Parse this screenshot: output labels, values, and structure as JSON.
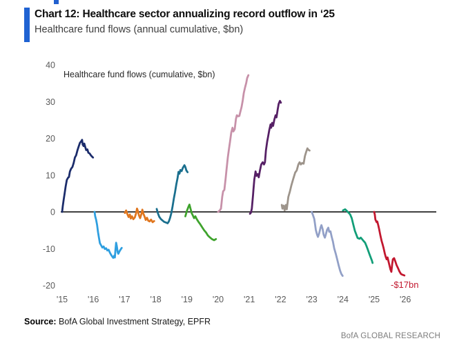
{
  "header": {
    "title": "Chart 12: Healthcare sector annualizing record outflow in ‘25",
    "subtitle": "Healthcare fund flows (annual cumulative, $bn)"
  },
  "footer": {
    "source_label": "Source:",
    "source_text": " BofA Global Investment Strategy, EPFR",
    "brand": "BofA GLOBAL RESEARCH"
  },
  "accent_color": "#1f62d2",
  "chart_data": {
    "type": "line",
    "title": "Healthcare fund flows (cumulative, $bn)",
    "xlabel": "",
    "ylabel": "$bn",
    "ylim": [
      -20,
      40
    ],
    "grid": false,
    "legend": "none",
    "x_ticks": [
      "'15",
      "'16",
      "'17",
      "'18",
      "'19",
      "'20",
      "'21",
      "'22",
      "'23",
      "'24",
      "'25",
      "'26"
    ],
    "y_ticks": [
      40,
      30,
      20,
      10,
      0,
      -10,
      -20
    ],
    "annotation": {
      "text": "-$17bn"
    },
    "series": [
      {
        "year": "'15",
        "color": "#1b2c6b",
        "points": [
          [
            0,
            0
          ],
          [
            0.02,
            1.5
          ],
          [
            0.05,
            3.4
          ],
          [
            0.08,
            5
          ],
          [
            0.11,
            6.8
          ],
          [
            0.15,
            8.7
          ],
          [
            0.19,
            9.3
          ],
          [
            0.22,
            9.5
          ],
          [
            0.25,
            11
          ],
          [
            0.29,
            11.8
          ],
          [
            0.33,
            12.2
          ],
          [
            0.37,
            13.3
          ],
          [
            0.41,
            14.8
          ],
          [
            0.45,
            15.4
          ],
          [
            0.49,
            16.7
          ],
          [
            0.53,
            17.8
          ],
          [
            0.57,
            18.8
          ],
          [
            0.61,
            19.2
          ],
          [
            0.64,
            19.6
          ],
          [
            0.66,
            18.3
          ],
          [
            0.69,
            17.9
          ],
          [
            0.71,
            18.6
          ],
          [
            0.74,
            17.7
          ],
          [
            0.77,
            16.8
          ],
          [
            0.81,
            17
          ],
          [
            0.84,
            16.1
          ],
          [
            0.88,
            15.9
          ],
          [
            0.93,
            15.3
          ],
          [
            0.99,
            14.8
          ]
        ]
      },
      {
        "year": "'16",
        "color": "#2f9fe0",
        "points": [
          [
            0.04,
            0
          ],
          [
            0.06,
            -1.2
          ],
          [
            0.09,
            -2.2
          ],
          [
            0.12,
            -3.5
          ],
          [
            0.15,
            -5.5
          ],
          [
            0.18,
            -7
          ],
          [
            0.21,
            -8.5
          ],
          [
            0.25,
            -9.1
          ],
          [
            0.29,
            -9.7
          ],
          [
            0.33,
            -9.4
          ],
          [
            0.37,
            -10.1
          ],
          [
            0.41,
            -9.9
          ],
          [
            0.45,
            -10.5
          ],
          [
            0.49,
            -10.3
          ],
          [
            0.53,
            -11.1
          ],
          [
            0.57,
            -11.7
          ],
          [
            0.61,
            -12.2
          ],
          [
            0.64,
            -12.5
          ],
          [
            0.67,
            -11.9
          ],
          [
            0.69,
            -12.4
          ],
          [
            0.71,
            -10.2
          ],
          [
            0.73,
            -8.4
          ],
          [
            0.75,
            -9.2
          ],
          [
            0.78,
            -11
          ],
          [
            0.8,
            -11.4
          ],
          [
            0.84,
            -10.7
          ],
          [
            0.87,
            -10.3
          ],
          [
            0.91,
            -9.8
          ]
        ]
      },
      {
        "year": "'17",
        "color": "#e0761e",
        "points": [
          [
            0.01,
            -0.3
          ],
          [
            0.05,
            0.4
          ],
          [
            0.09,
            -0.6
          ],
          [
            0.13,
            -1.4
          ],
          [
            0.17,
            -0.7
          ],
          [
            0.2,
            -1.8
          ],
          [
            0.24,
            -1.2
          ],
          [
            0.28,
            -2
          ],
          [
            0.33,
            -1.5
          ],
          [
            0.37,
            -0.4
          ],
          [
            0.4,
            0.9
          ],
          [
            0.43,
            0.2
          ],
          [
            0.46,
            -0.9
          ],
          [
            0.5,
            -1.7
          ],
          [
            0.54,
            -0.6
          ],
          [
            0.57,
            0.6
          ],
          [
            0.6,
            -0.4
          ],
          [
            0.64,
            -1.2
          ],
          [
            0.68,
            -2.2
          ],
          [
            0.72,
            -1.6
          ],
          [
            0.76,
            -2.4
          ],
          [
            0.8,
            -2.6
          ],
          [
            0.85,
            -2.1
          ],
          [
            0.9,
            -2.8
          ],
          [
            0.95,
            -2.5
          ]
        ]
      },
      {
        "year": "'18",
        "color": "#1a6f8e",
        "points": [
          [
            0.03,
            0.8
          ],
          [
            0.07,
            -0.4
          ],
          [
            0.11,
            -1.3
          ],
          [
            0.16,
            -1.9
          ],
          [
            0.21,
            -2.3
          ],
          [
            0.27,
            -2.7
          ],
          [
            0.33,
            -2.9
          ],
          [
            0.38,
            -3.1
          ],
          [
            0.42,
            -2.6
          ],
          [
            0.46,
            -1.6
          ],
          [
            0.5,
            -0.3
          ],
          [
            0.54,
            1.5
          ],
          [
            0.58,
            3.6
          ],
          [
            0.62,
            5.4
          ],
          [
            0.66,
            7.5
          ],
          [
            0.7,
            9.2
          ],
          [
            0.73,
            10.9
          ],
          [
            0.76,
            10.4
          ],
          [
            0.79,
            11.4
          ],
          [
            0.83,
            11.1
          ],
          [
            0.87,
            12
          ],
          [
            0.92,
            12.7
          ],
          [
            0.95,
            12.2
          ],
          [
            0.98,
            11.3
          ],
          [
            1.02,
            10.8
          ]
        ]
      },
      {
        "year": "'19",
        "color": "#3fa32d",
        "points": [
          [
            -0.05,
            -1.2
          ],
          [
            0,
            0.3
          ],
          [
            0.04,
            1.2
          ],
          [
            0.08,
            2
          ],
          [
            0.11,
            1
          ],
          [
            0.15,
            -0.3
          ],
          [
            0.19,
            -1
          ],
          [
            0.23,
            -1.7
          ],
          [
            0.27,
            -1.2
          ],
          [
            0.31,
            -1.9
          ],
          [
            0.37,
            -2.7
          ],
          [
            0.43,
            -3.4
          ],
          [
            0.49,
            -4.2
          ],
          [
            0.55,
            -5
          ],
          [
            0.61,
            -5.6
          ],
          [
            0.67,
            -6.4
          ],
          [
            0.73,
            -6.9
          ],
          [
            0.8,
            -7.4
          ],
          [
            0.87,
            -7.7
          ],
          [
            0.93,
            -7.4
          ]
        ]
      },
      {
        "year": "'20",
        "color": "#c791a9",
        "points": [
          [
            0,
            0
          ],
          [
            0.05,
            0.4
          ],
          [
            0.09,
            0.9
          ],
          [
            0.13,
            4.1
          ],
          [
            0.16,
            5.6
          ],
          [
            0.2,
            6
          ],
          [
            0.24,
            9
          ],
          [
            0.27,
            11.6
          ],
          [
            0.31,
            14.8
          ],
          [
            0.35,
            17.3
          ],
          [
            0.38,
            19.1
          ],
          [
            0.42,
            21.6
          ],
          [
            0.46,
            22.9
          ],
          [
            0.49,
            21.9
          ],
          [
            0.53,
            22.5
          ],
          [
            0.57,
            25.3
          ],
          [
            0.6,
            26.3
          ],
          [
            0.64,
            26
          ],
          [
            0.68,
            26.1
          ],
          [
            0.71,
            27.2
          ],
          [
            0.75,
            28.5
          ],
          [
            0.79,
            30.4
          ],
          [
            0.82,
            32.3
          ],
          [
            0.86,
            33.8
          ],
          [
            0.9,
            35.1
          ],
          [
            0.93,
            36.4
          ],
          [
            0.97,
            37.2
          ]
        ]
      },
      {
        "year": "'21",
        "color": "#562065",
        "points": [
          [
            0.02,
            -0.5
          ],
          [
            0.05,
            -0.2
          ],
          [
            0.08,
            0.9
          ],
          [
            0.12,
            4.7
          ],
          [
            0.13,
            6
          ],
          [
            0.16,
            8.8
          ],
          [
            0.2,
            11
          ],
          [
            0.23,
            9.8
          ],
          [
            0.27,
            10.3
          ],
          [
            0.3,
            9.4
          ],
          [
            0.34,
            11.3
          ],
          [
            0.38,
            12.9
          ],
          [
            0.43,
            13.5
          ],
          [
            0.47,
            12.9
          ],
          [
            0.5,
            13.5
          ],
          [
            0.53,
            16.7
          ],
          [
            0.57,
            19.1
          ],
          [
            0.6,
            20.4
          ],
          [
            0.64,
            22.3
          ],
          [
            0.68,
            23.8
          ],
          [
            0.7,
            22.9
          ],
          [
            0.73,
            24.2
          ],
          [
            0.76,
            23.4
          ],
          [
            0.8,
            25.1
          ],
          [
            0.84,
            26.3
          ],
          [
            0.87,
            25.7
          ],
          [
            0.91,
            27.9
          ],
          [
            0.94,
            29.4
          ],
          [
            0.98,
            30.2
          ],
          [
            1.01,
            29.7
          ]
        ]
      },
      {
        "year": "'22",
        "color": "#9d948b",
        "points": [
          [
            0.04,
            1.9
          ],
          [
            0.06,
            0.9
          ],
          [
            0.1,
            1.7
          ],
          [
            0.13,
            0.4
          ],
          [
            0.17,
            1.9
          ],
          [
            0.2,
            0.7
          ],
          [
            0.25,
            4.1
          ],
          [
            0.3,
            5.6
          ],
          [
            0.35,
            7.3
          ],
          [
            0.4,
            8.8
          ],
          [
            0.47,
            10.7
          ],
          [
            0.52,
            11.3
          ],
          [
            0.57,
            12.9
          ],
          [
            0.61,
            13.5
          ],
          [
            0.65,
            12.9
          ],
          [
            0.69,
            13.3
          ],
          [
            0.74,
            13.1
          ],
          [
            0.78,
            15.2
          ],
          [
            0.82,
            16.3
          ],
          [
            0.86,
            17.3
          ],
          [
            0.89,
            16.9
          ],
          [
            0.93,
            16.7
          ]
        ]
      },
      {
        "year": "'23",
        "color": "#92a0c7",
        "points": [
          [
            0,
            0
          ],
          [
            0.04,
            -0.9
          ],
          [
            0.08,
            -1.9
          ],
          [
            0.1,
            -3
          ],
          [
            0.13,
            -4.9
          ],
          [
            0.17,
            -6.2
          ],
          [
            0.2,
            -6.8
          ],
          [
            0.24,
            -5.8
          ],
          [
            0.28,
            -4.3
          ],
          [
            0.31,
            -3.6
          ],
          [
            0.35,
            -4.7
          ],
          [
            0.38,
            -6.2
          ],
          [
            0.42,
            -7
          ],
          [
            0.45,
            -6.2
          ],
          [
            0.49,
            -4.9
          ],
          [
            0.53,
            -4.3
          ],
          [
            0.56,
            -5.4
          ],
          [
            0.6,
            -5.3
          ],
          [
            0.64,
            -6.8
          ],
          [
            0.68,
            -8.1
          ],
          [
            0.72,
            -9.9
          ],
          [
            0.77,
            -11.4
          ],
          [
            0.82,
            -13.1
          ],
          [
            0.86,
            -14.5
          ],
          [
            0.91,
            -16
          ],
          [
            0.95,
            -16.9
          ],
          [
            0.99,
            -17.4
          ]
        ]
      },
      {
        "year": "'24",
        "color": "#129e78",
        "points": [
          [
            0,
            0.4
          ],
          [
            0.07,
            0.7
          ],
          [
            0.13,
            0.2
          ],
          [
            0.18,
            -0.2
          ],
          [
            0.23,
            -0.7
          ],
          [
            0.28,
            -1.7
          ],
          [
            0.33,
            -3.4
          ],
          [
            0.38,
            -5.1
          ],
          [
            0.43,
            -6.2
          ],
          [
            0.47,
            -7.1
          ],
          [
            0.53,
            -7.3
          ],
          [
            0.57,
            -7
          ],
          [
            0.62,
            -7.5
          ],
          [
            0.66,
            -7.9
          ],
          [
            0.71,
            -8.4
          ],
          [
            0.75,
            -9.2
          ],
          [
            0.79,
            -10.1
          ],
          [
            0.84,
            -11.3
          ],
          [
            0.88,
            -12.2
          ],
          [
            0.93,
            -13.3
          ],
          [
            0.95,
            -13.9
          ]
        ]
      },
      {
        "year": "'25",
        "color": "#c2182f",
        "points": [
          [
            0,
            0
          ],
          [
            0.02,
            -0.7
          ],
          [
            0.04,
            -2.1
          ],
          [
            0.08,
            -2.8
          ],
          [
            0.1,
            -2.6
          ],
          [
            0.13,
            -3.6
          ],
          [
            0.16,
            -4.7
          ],
          [
            0.2,
            -6.4
          ],
          [
            0.24,
            -7.9
          ],
          [
            0.27,
            -8.8
          ],
          [
            0.3,
            -9.8
          ],
          [
            0.34,
            -11.3
          ],
          [
            0.37,
            -12.2
          ],
          [
            0.4,
            -12.9
          ],
          [
            0.43,
            -12.4
          ],
          [
            0.46,
            -13.5
          ],
          [
            0.49,
            -14.5
          ],
          [
            0.52,
            -15.6
          ],
          [
            0.55,
            -16.3
          ],
          [
            0.58,
            -14.1
          ],
          [
            0.6,
            -12.9
          ],
          [
            0.64,
            -12.6
          ],
          [
            0.68,
            -13.5
          ],
          [
            0.72,
            -14.5
          ],
          [
            0.77,
            -15.4
          ],
          [
            0.81,
            -16.2
          ],
          [
            0.86,
            -16.9
          ],
          [
            0.91,
            -17.1
          ],
          [
            0.97,
            -17.3
          ]
        ]
      }
    ]
  }
}
